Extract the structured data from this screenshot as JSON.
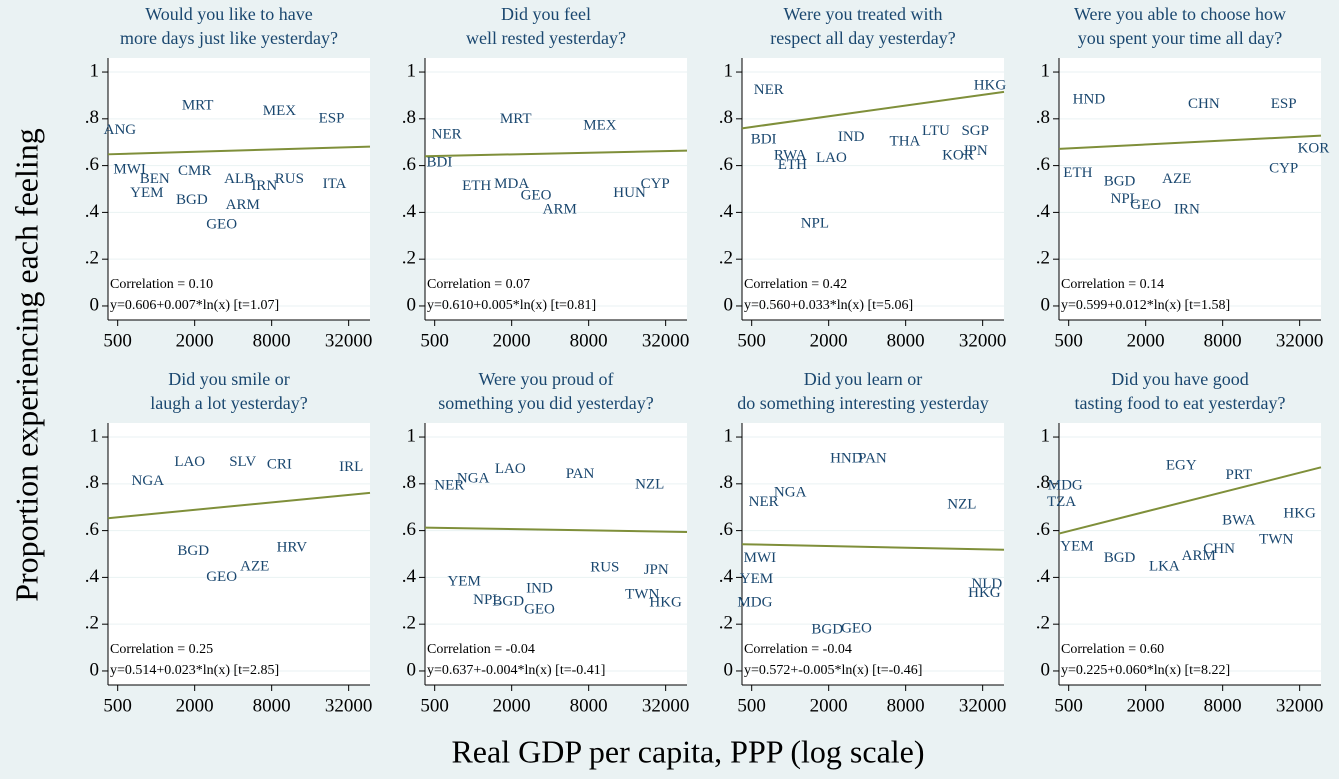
{
  "y_label": "Proportion experiencing each feeling",
  "x_label": "Real GDP per capita, PPP (log scale)",
  "chart_data": [
    {
      "type": "scatter",
      "title": [
        "Would you like to have",
        "more days just like yesterday?"
      ],
      "x": [
        2110,
        9200,
        23500,
        520,
        975,
        620,
        845,
        1900,
        4750,
        3250,
        7000,
        24800,
        2000,
        11000,
        4450
      ],
      "values": [
        0.855,
        0.83,
        0.8,
        0.75,
        0.54,
        0.58,
        0.48,
        0.45,
        0.43,
        0.345,
        0.51,
        0.52,
        0.575,
        0.54,
        0.54
      ],
      "point_labels": [
        "MRT",
        "MEX",
        "ESP",
        "ANG",
        "BEN",
        "MWI",
        "YEM",
        "BGD",
        "ARM",
        "GEO",
        "IRN",
        "ITA",
        "CMR",
        "RUS",
        "ALB"
      ],
      "color": "#1a476f",
      "fit": {
        "intercept": 0.606,
        "slope": 0.007,
        "color": "#7f8f3a"
      },
      "correlation": "Correlation = 0.10",
      "equation": "y=0.606+0.007*ln(x) [t=1.07]",
      "xlim": [
        420,
        47000
      ],
      "ylim": [
        -0.06,
        1.06
      ],
      "log_x": true,
      "grid": true,
      "xticks": [
        500,
        2000,
        8000,
        32000
      ],
      "yticks": [
        0,
        {
          "value": 0.2,
          "label": ".2"
        },
        {
          "value": 0.4,
          "label": ".4"
        },
        {
          "value": 0.6,
          "label": ".6"
        },
        {
          "value": 0.8,
          "label": ".8"
        },
        1
      ]
    },
    {
      "type": "scatter",
      "title": [
        "Did you feel",
        "well rested yesterday?"
      ],
      "x": [
        2150,
        620,
        2000,
        1065,
        3100,
        4750,
        16700,
        26500,
        545,
        9800
      ],
      "values": [
        0.796,
        0.73,
        0.52,
        0.51,
        0.47,
        0.41,
        0.48,
        0.52,
        0.61,
        0.77
      ],
      "point_labels": [
        "MRT",
        "NER",
        "MDA",
        "ETH",
        "GEO",
        "ARM",
        "HUN",
        "CYP",
        "BDI",
        "MEX"
      ],
      "color": "#1a476f",
      "fit": {
        "intercept": 0.61,
        "slope": 0.005,
        "color": "#7f8f3a"
      },
      "correlation": "Correlation = 0.07",
      "equation": "y=0.610+0.005*ln(x) [t=0.81]",
      "xlim": [
        420,
        47000
      ],
      "ylim": [
        -0.06,
        1.06
      ],
      "log_x": true,
      "grid": true,
      "xticks": [
        500,
        2000,
        8000,
        32000
      ],
      "yticks": [
        0,
        {
          "value": 0.2,
          "label": ".2"
        },
        {
          "value": 0.4,
          "label": ".4"
        },
        {
          "value": 0.6,
          "label": ".6"
        },
        {
          "value": 0.8,
          "label": ".8"
        },
        1
      ]
    },
    {
      "type": "scatter",
      "title": [
        "Were you treated with",
        "respect all day yesterday?"
      ],
      "x": [
        680,
        620,
        1040,
        2100,
        1560,
        7900,
        13800,
        28000,
        20500,
        28000,
        36500,
        3000,
        1000
      ],
      "values": [
        0.92,
        0.71,
        0.6,
        0.63,
        0.35,
        0.7,
        0.745,
        0.745,
        0.64,
        0.66,
        0.94,
        0.72,
        0.64
      ],
      "point_labels": [
        "NER",
        "BDI",
        "ETH",
        "LAO",
        "NPL",
        "THA",
        "LTU",
        "SGP",
        "KOR",
        "JPN",
        "HKG",
        "IND",
        "RWA"
      ],
      "color": "#1a476f",
      "fit": {
        "intercept": 0.56,
        "slope": 0.033,
        "color": "#7f8f3a"
      },
      "correlation": "Correlation = 0.42",
      "equation": "y=0.560+0.033*ln(x) [t=5.06]",
      "xlim": [
        420,
        47000
      ],
      "ylim": [
        -0.06,
        1.06
      ],
      "log_x": true,
      "grid": true,
      "xticks": [
        500,
        2000,
        8000,
        32000
      ],
      "yticks": [
        0,
        {
          "value": 0.2,
          "label": ".2"
        },
        {
          "value": 0.4,
          "label": ".4"
        },
        {
          "value": 0.6,
          "label": ".6"
        },
        {
          "value": 0.8,
          "label": ".8"
        },
        1
      ]
    },
    {
      "type": "scatter",
      "title": [
        "Were you able to choose how",
        "you spent your time all day?"
      ],
      "x": [
        720,
        1370,
        2000,
        3500,
        4200,
        590,
        1250,
        24000,
        24000,
        5700,
        41000
      ],
      "values": [
        0.88,
        0.455,
        0.43,
        0.54,
        0.41,
        0.565,
        0.53,
        0.585,
        0.86,
        0.86,
        0.67
      ],
      "point_labels": [
        "HND",
        "NPL",
        "GEO",
        "AZE",
        "IRN",
        "ETH",
        "BGD",
        "CYP",
        "ESP",
        "CHN",
        "KOR"
      ],
      "color": "#1a476f",
      "fit": {
        "intercept": 0.599,
        "slope": 0.012,
        "color": "#7f8f3a"
      },
      "correlation": "Correlation = 0.14",
      "equation": "y=0.599+0.012*ln(x) [t=1.58]",
      "xlim": [
        420,
        47000
      ],
      "ylim": [
        -0.06,
        1.06
      ],
      "log_x": true,
      "grid": true,
      "xticks": [
        500,
        2000,
        8000,
        32000
      ],
      "yticks": [
        0,
        {
          "value": 0.2,
          "label": ".2"
        },
        {
          "value": 0.4,
          "label": ".4"
        },
        {
          "value": 0.6,
          "label": ".6"
        },
        {
          "value": 0.8,
          "label": ".8"
        },
        1
      ]
    },
    {
      "type": "scatter",
      "title": [
        "Did you smile or",
        "laugh a lot yesterday?"
      ],
      "x": [
        1830,
        3250,
        5900,
        1950,
        11500,
        9200,
        33500,
        860,
        4750
      ],
      "values": [
        0.89,
        0.4,
        0.445,
        0.51,
        0.525,
        0.88,
        0.87,
        0.81,
        0.89
      ],
      "point_labels": [
        "LAO",
        "GEO",
        "AZE",
        "BGD",
        "HRV",
        "CRI",
        "IRL",
        "NGA",
        "SLV"
      ],
      "color": "#1a476f",
      "fit": {
        "intercept": 0.514,
        "slope": 0.023,
        "color": "#7f8f3a"
      },
      "correlation": "Correlation = 0.25",
      "equation": "y=0.514+0.023*ln(x) [t=2.85]",
      "xlim": [
        420,
        47000
      ],
      "ylim": [
        -0.06,
        1.06
      ],
      "log_x": true,
      "grid": true,
      "xticks": [
        500,
        2000,
        8000,
        32000
      ],
      "yticks": [
        0,
        {
          "value": 0.2,
          "label": ".2"
        },
        {
          "value": 0.4,
          "label": ".4"
        },
        {
          "value": 0.6,
          "label": ".6"
        },
        {
          "value": 0.8,
          "label": ".8"
        },
        1
      ]
    },
    {
      "type": "scatter",
      "title": [
        "Were you proud of",
        "something you did yesterday?"
      ],
      "x": [
        1950,
        1000,
        650,
        850,
        1290,
        1880,
        3300,
        3300,
        27000,
        21000,
        32000,
        24000,
        6850,
        10700
      ],
      "values": [
        0.86,
        0.82,
        0.79,
        0.38,
        0.3,
        0.295,
        0.26,
        0.35,
        0.43,
        0.325,
        0.29,
        0.795,
        0.84,
        0.44
      ],
      "point_labels": [
        "LAO",
        "NGA",
        "NER",
        "YEM",
        "NPL",
        "BGD",
        "GEO",
        "IND",
        "JPN",
        "TWN",
        "HKG",
        "NZL",
        "PAN",
        "RUS"
      ],
      "color": "#1a476f",
      "fit": {
        "intercept": 0.637,
        "slope": -0.004,
        "color": "#7f8f3a"
      },
      "correlation": "Correlation = -0.04",
      "equation": "y=0.637+-0.004*ln(x) [t=-0.41]",
      "xlim": [
        420,
        47000
      ],
      "ylim": [
        -0.06,
        1.06
      ],
      "log_x": true,
      "grid": true,
      "xticks": [
        500,
        2000,
        8000,
        32000
      ],
      "yticks": [
        0,
        {
          "value": 0.2,
          "label": ".2"
        },
        {
          "value": 0.4,
          "label": ".4"
        },
        {
          "value": 0.6,
          "label": ".6"
        },
        {
          "value": 0.8,
          "label": ".8"
        },
        1
      ]
    },
    {
      "type": "scatter",
      "title": [
        "Did you learn or",
        "do something interesting yesterday"
      ],
      "x": [
        1000,
        620,
        2750,
        4400,
        530,
        1950,
        3300,
        545,
        22000,
        33000,
        34500,
        580
      ],
      "values": [
        0.76,
        0.72,
        0.905,
        0.905,
        0.29,
        0.175,
        0.18,
        0.39,
        0.71,
        0.33,
        0.37,
        0.48
      ],
      "point_labels": [
        "NGA",
        "NER",
        "HND",
        "PAN",
        "MDG",
        "BGD",
        "GEO",
        "YEM",
        "NZL",
        "HKG",
        "NLD",
        "MWI"
      ],
      "color": "#1a476f",
      "fit": {
        "intercept": 0.572,
        "slope": -0.005,
        "color": "#7f8f3a"
      },
      "correlation": "Correlation = -0.04",
      "equation": "y=0.572+-0.005*ln(x) [t=-0.46]",
      "xlim": [
        420,
        47000
      ],
      "ylim": [
        -0.06,
        1.06
      ],
      "log_x": true,
      "grid": true,
      "xticks": [
        500,
        2000,
        8000,
        32000
      ],
      "yticks": [
        0,
        {
          "value": 0.2,
          "label": ".2"
        },
        {
          "value": 0.4,
          "label": ".4"
        },
        {
          "value": 0.6,
          "label": ".6"
        },
        {
          "value": 0.8,
          "label": ".8"
        },
        1
      ]
    },
    {
      "type": "scatter",
      "title": [
        "Did you have good",
        "tasting food to eat yesterday?"
      ],
      "x": [
        10700,
        470,
        440,
        21000,
        32000,
        10700,
        2800,
        1250,
        580,
        7500,
        5200,
        3800
      ],
      "values": [
        0.835,
        0.79,
        0.72,
        0.56,
        0.67,
        0.64,
        0.445,
        0.48,
        0.53,
        0.52,
        0.49,
        0.875
      ],
      "point_labels": [
        "PRT",
        "MDG",
        "TZA",
        "TWN",
        "HKG",
        "BWA",
        "LKA",
        "BGD",
        "YEM",
        "CHN",
        "ARM",
        "EGY"
      ],
      "color": "#1a476f",
      "fit": {
        "intercept": 0.225,
        "slope": 0.06,
        "color": "#7f8f3a"
      },
      "correlation": "Correlation = 0.60",
      "equation": "y=0.225+0.060*ln(x) [t=8.22]",
      "xlim": [
        420,
        47000
      ],
      "ylim": [
        -0.06,
        1.06
      ],
      "log_x": true,
      "grid": true,
      "xticks": [
        500,
        2000,
        8000,
        32000
      ],
      "yticks": [
        0,
        {
          "value": 0.2,
          "label": ".2"
        },
        {
          "value": 0.4,
          "label": ".4"
        },
        {
          "value": 0.6,
          "label": ".6"
        },
        {
          "value": 0.8,
          "label": ".8"
        },
        1
      ]
    }
  ]
}
